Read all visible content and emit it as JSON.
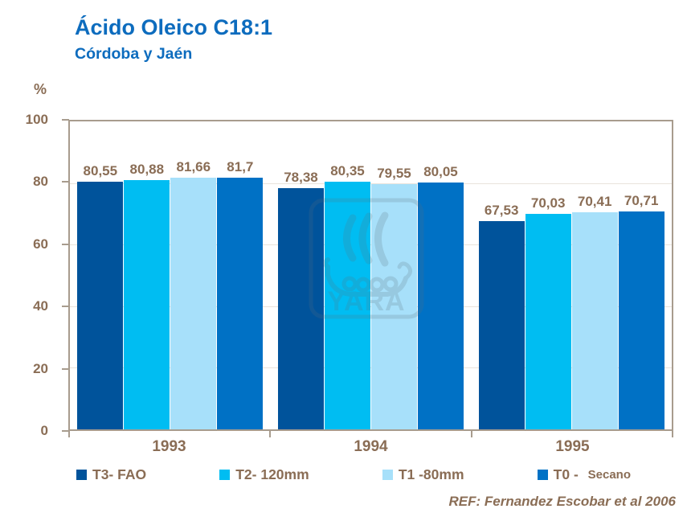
{
  "title": "Ácido Oleico C18:1",
  "subtitle": "Córdoba y Jaén",
  "y_axis": {
    "unit": "%",
    "ticks": [
      "100",
      "80",
      "60",
      "40",
      "20",
      "0"
    ]
  },
  "chart_data": {
    "type": "bar",
    "title": "Ácido Oleico C18:1",
    "subtitle": "Córdoba y Jaén",
    "categories": [
      "1993",
      "1994",
      "1995"
    ],
    "series": [
      {
        "name": "T3- FAO",
        "color": "#00539b",
        "values": [
          80.55,
          78.38,
          67.53
        ],
        "labels": [
          "80,55",
          "78,38",
          "67,53"
        ]
      },
      {
        "name": "T2- 120mm",
        "color": "#00bdf2",
        "values": [
          80.88,
          80.35,
          70.03
        ],
        "labels": [
          "80,88",
          "80,35",
          "70,03"
        ]
      },
      {
        "name": "T1 -80mm",
        "color": "#a7e0fa",
        "values": [
          81.66,
          79.55,
          70.41
        ],
        "labels": [
          "81,66",
          "79,55",
          "70,41"
        ]
      },
      {
        "name": "T0 - Secano",
        "color": "#0071c5",
        "values": [
          81.7,
          80.05,
          70.71
        ],
        "labels": [
          "81,7",
          "80,05",
          "70,71"
        ]
      }
    ],
    "ylabel": "%",
    "ylim": [
      0,
      100
    ],
    "grid": true,
    "gridline_step": 20,
    "legend_position": "bottom"
  },
  "legend": {
    "items": [
      {
        "label": "T3- FAO"
      },
      {
        "label": "T2- 120mm"
      },
      {
        "label": "T1 -80mm"
      },
      {
        "label": "T0 - ",
        "label_small": "Secano"
      }
    ]
  },
  "watermark": {
    "text": "YARA"
  },
  "reference": "REF: Fernandez Escobar et al 2006",
  "colors": {
    "title_blue": "#0d6cbe",
    "text_brown": "#8a6d55",
    "plot_border": "#a89c8e",
    "gridline": "#e9e3dc"
  }
}
